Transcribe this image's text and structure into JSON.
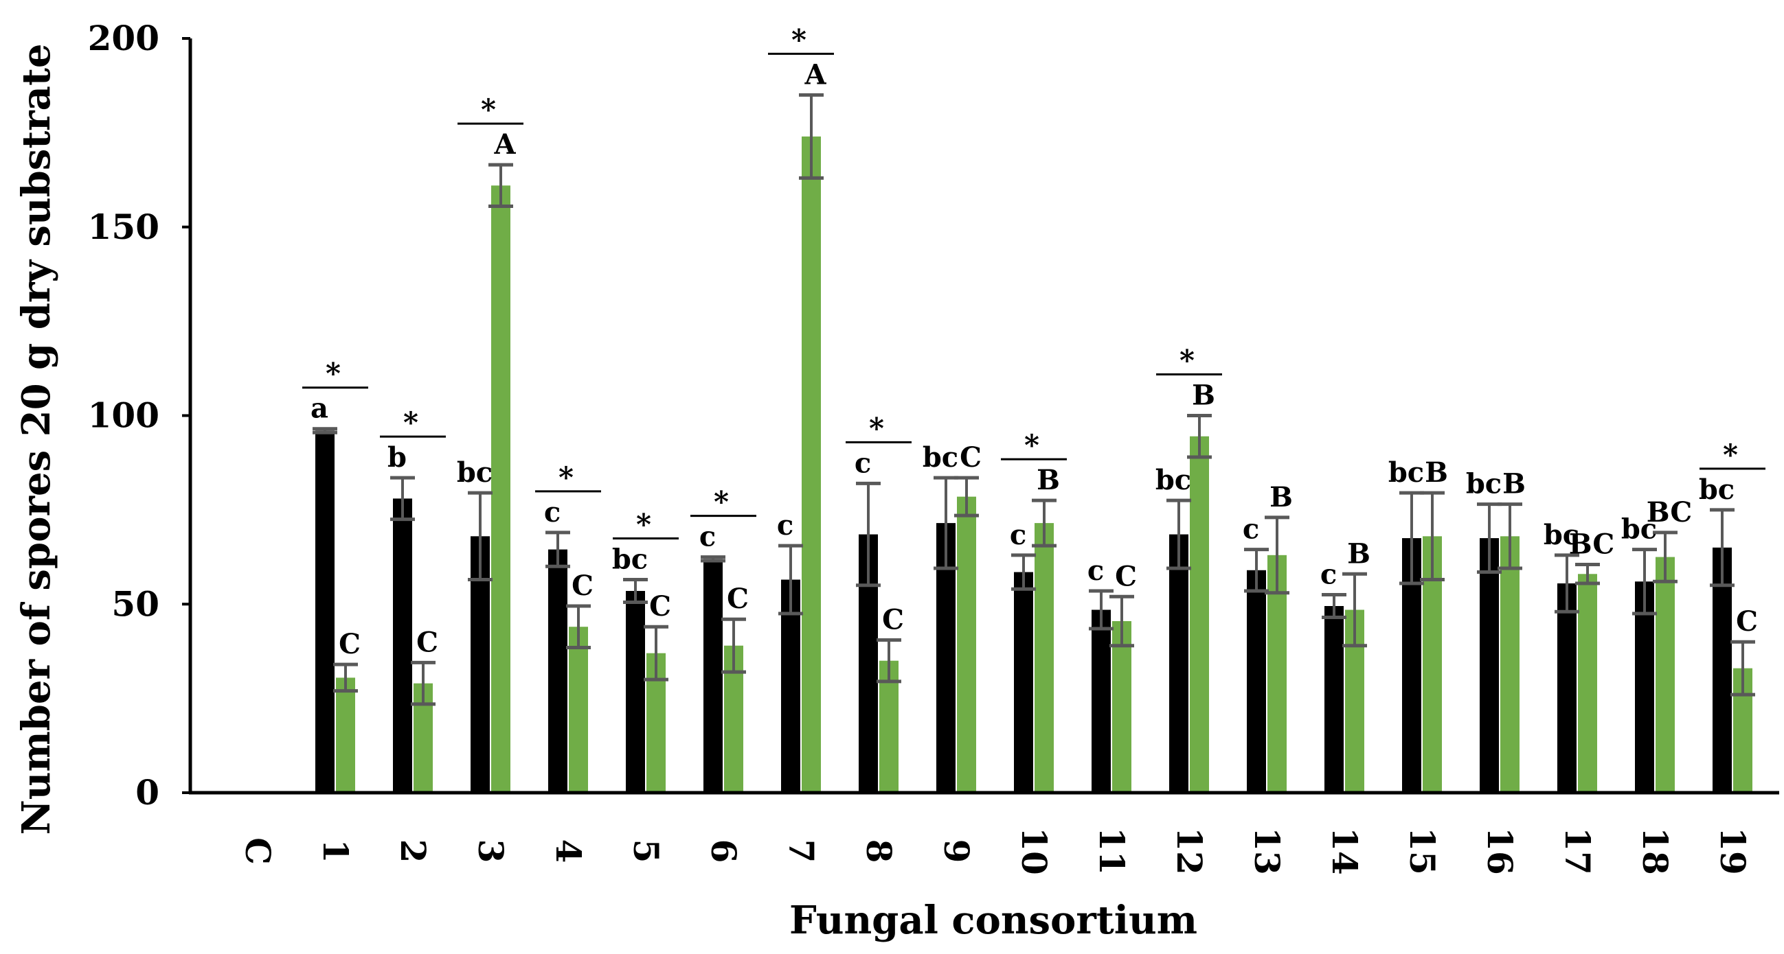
{
  "chart_data": {
    "type": "bar",
    "title": "",
    "xlabel": "Fungal consortium",
    "ylabel": "Number of spores  20 g dry substrate",
    "ylim": [
      0,
      200
    ],
    "yticks": [
      "0",
      "50",
      "100",
      "150",
      "200"
    ],
    "grid": false,
    "legend": "none",
    "colors": {
      "black_series": "#000000",
      "green_series": "#70ad47",
      "error_bar": "#595959"
    },
    "categories": [
      "C",
      "1",
      "2",
      "3",
      "4",
      "5",
      "6",
      "7",
      "8",
      "9",
      "10",
      "11",
      "12",
      "13",
      "14",
      "15",
      "16",
      "17",
      "18",
      "19"
    ],
    "series": [
      {
        "values": [
          null,
          96,
          78,
          68,
          64.5,
          53.5,
          62,
          56.5,
          68.5,
          71.5,
          58.5,
          48.5,
          68.5,
          59,
          49.5,
          67.5,
          67.5,
          55.5,
          56,
          65
        ],
        "errors": [
          null,
          0.5,
          5.5,
          11.5,
          4.5,
          3,
          0.5,
          9,
          13.5,
          12,
          4.5,
          5,
          9,
          5.5,
          3,
          12,
          9,
          7.5,
          8.5,
          10
        ],
        "letters": [
          "",
          "a",
          "b",
          "bc",
          "c",
          "bc",
          "c",
          "c",
          "c",
          "bc",
          "c",
          "c",
          "bc",
          "c",
          "c",
          "bc",
          "bc",
          "bc",
          "bc",
          "bc"
        ]
      },
      {
        "values": [
          null,
          30.5,
          29,
          161,
          44,
          37,
          39,
          174,
          35,
          78.5,
          71.5,
          45.5,
          94.5,
          63,
          48.5,
          68,
          68,
          58,
          62.5,
          33
        ],
        "errors": [
          null,
          3.5,
          5.5,
          5.5,
          5.5,
          7,
          7,
          11,
          5.5,
          5,
          6,
          6.5,
          5.5,
          10,
          9.5,
          11.5,
          8.5,
          2.5,
          6.5,
          7
        ],
        "letters": [
          "",
          "C",
          "C",
          "A",
          "C",
          "C",
          "C",
          "A",
          "C",
          "C",
          "B",
          "C",
          "B",
          "B",
          "B",
          "B",
          "B",
          "BC",
          "BC",
          "C"
        ]
      }
    ],
    "significance_marker": "*",
    "significant_categories": [
      "1",
      "2",
      "3",
      "4",
      "5",
      "6",
      "7",
      "8",
      "10",
      "12",
      "19"
    ]
  }
}
